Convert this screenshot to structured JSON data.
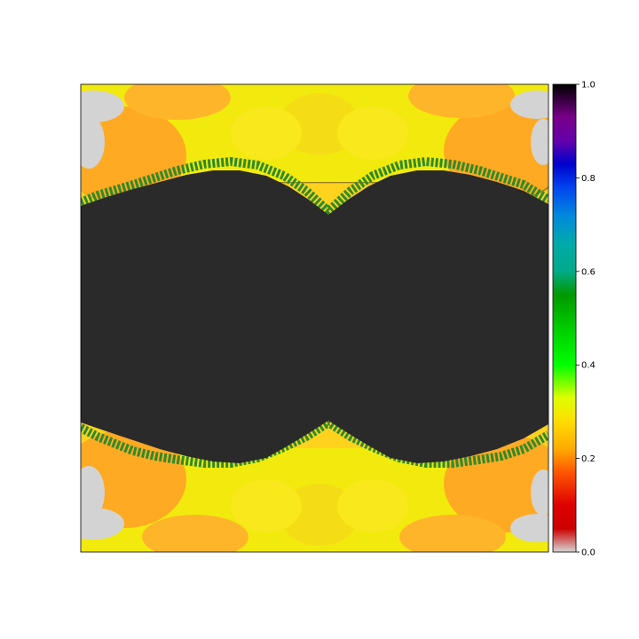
{
  "chart_data": {
    "type": "heatmap",
    "title": "",
    "xlabel": "",
    "ylabel": "",
    "axes_ticks_visible": false,
    "image_description": "Shaded fractal (escape-time) rendering: the interior of the set is flat dark gray; the exterior is colored by the nipy_spectral colormap, giving light gray, orange, yellow and green fringes with embossed lighting.",
    "colormap": "nipy_spectral",
    "interior_color": "#2a2a2a",
    "colorbar": {
      "range": [
        0.0,
        1.0
      ],
      "ticks": [
        0.0,
        0.2,
        0.4,
        0.6,
        0.8,
        1.0
      ],
      "tick_labels": [
        "0.0",
        "0.2",
        "0.4",
        "0.6",
        "0.8",
        "1.0"
      ],
      "stops": [
        {
          "v": 0.0,
          "color": "#d6d6d6"
        },
        {
          "v": 0.05,
          "color": "#cc0000"
        },
        {
          "v": 0.1,
          "color": "#dd0000"
        },
        {
          "v": 0.17,
          "color": "#ff5500"
        },
        {
          "v": 0.22,
          "color": "#ffaa00"
        },
        {
          "v": 0.28,
          "color": "#ffdd00"
        },
        {
          "v": 0.33,
          "color": "#ddff00"
        },
        {
          "v": 0.4,
          "color": "#00ff00"
        },
        {
          "v": 0.48,
          "color": "#00cc00"
        },
        {
          "v": 0.55,
          "color": "#009900"
        },
        {
          "v": 0.6,
          "color": "#00aa88"
        },
        {
          "v": 0.66,
          "color": "#00aaaa"
        },
        {
          "v": 0.72,
          "color": "#0088dd"
        },
        {
          "v": 0.78,
          "color": "#0044ee"
        },
        {
          "v": 0.83,
          "color": "#0000cc"
        },
        {
          "v": 0.88,
          "color": "#6600aa"
        },
        {
          "v": 0.93,
          "color": "#770088"
        },
        {
          "v": 1.0,
          "color": "#000000"
        }
      ]
    }
  }
}
